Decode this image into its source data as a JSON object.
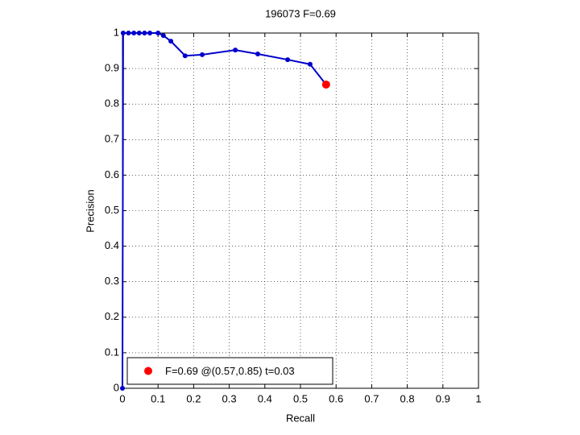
{
  "chart_data": {
    "type": "line",
    "title": "196073 F=0.69",
    "xlabel": "Recall",
    "ylabel": "Precision",
    "series": [
      {
        "color": "#0000cc",
        "x": [
          0,
          0.002,
          0.017,
          0.032,
          0.047,
          0.062,
          0.077,
          0.1,
          0.115,
          0.136,
          0.176,
          0.224,
          0.317,
          0.38,
          0.464,
          0.527,
          0.572
        ],
        "values": [
          0,
          1,
          1,
          1,
          1,
          1,
          1,
          1,
          0.993,
          0.977,
          0.936,
          0.939,
          0.952,
          0.941,
          0.925,
          0.912,
          0.855
        ]
      },
      {
        "name": "F=0.69 @(0.57,0.85) t=0.03",
        "color": "#ff0000",
        "type": "scatter",
        "x": [
          0.572
        ],
        "values": [
          0.855
        ]
      }
    ],
    "xlim": [
      0,
      1
    ],
    "ylim": [
      0,
      1
    ],
    "xticks": [
      0,
      0.1,
      0.2,
      0.3,
      0.4,
      0.5,
      0.6,
      0.7,
      0.8,
      0.9,
      1
    ],
    "yticks": [
      0,
      0.1,
      0.2,
      0.3,
      0.4,
      0.5,
      0.6,
      0.7,
      0.8,
      0.9,
      1
    ],
    "grid": true,
    "legend": "lower left"
  }
}
